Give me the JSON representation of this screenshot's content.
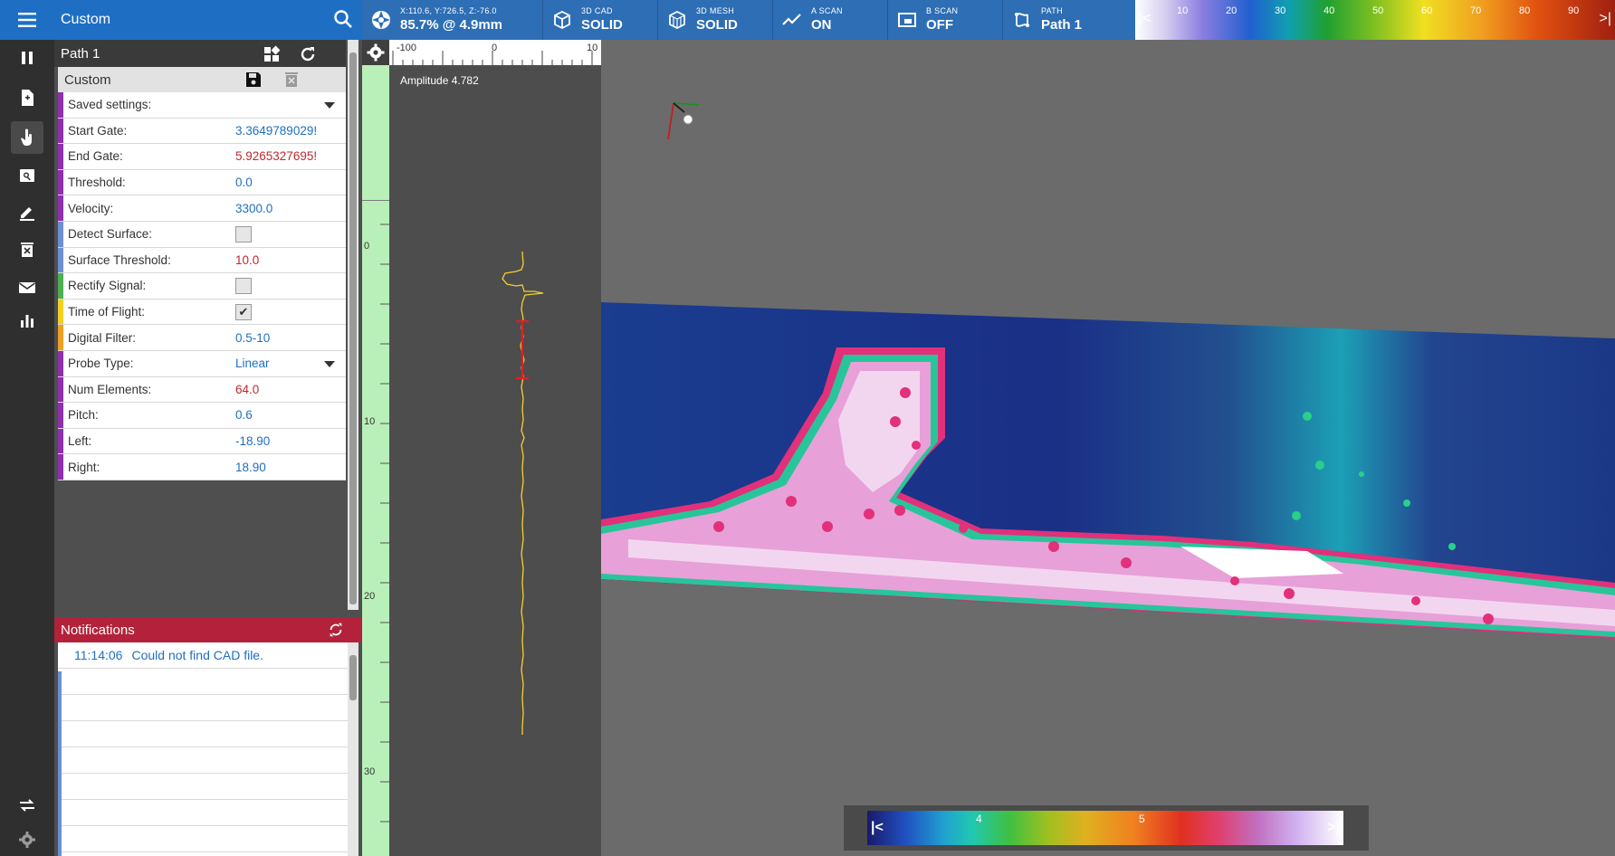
{
  "header": {
    "title": "Custom"
  },
  "path": {
    "name": "Path 1"
  },
  "preset": {
    "name": "Custom"
  },
  "settings": [
    {
      "label": "Saved settings:",
      "type": "dropdown",
      "value": "",
      "color": "#8e2fae"
    },
    {
      "label": "Start Gate:",
      "type": "text",
      "value": "3.3649789029!",
      "tone": "blue",
      "color": "#8e2fae"
    },
    {
      "label": "End Gate:",
      "type": "text",
      "value": "5.9265327695!",
      "tone": "red",
      "color": "#8e2fae"
    },
    {
      "label": "Threshold:",
      "type": "text",
      "value": "0.0",
      "tone": "blue",
      "color": "#8e2fae"
    },
    {
      "label": "Velocity:",
      "type": "text",
      "value": "3300.0",
      "tone": "blue",
      "color": "#8e2fae"
    },
    {
      "label": "Detect Surface:",
      "type": "checkbox",
      "checked": false,
      "color": "#6b8fd4"
    },
    {
      "label": "Surface Threshold:",
      "type": "text",
      "value": "10.0",
      "tone": "red",
      "color": "#6b8fd4"
    },
    {
      "label": "Rectify Signal:",
      "type": "checkbox",
      "checked": false,
      "color": "#4caf50"
    },
    {
      "label": "Time of Flight:",
      "type": "checkbox",
      "checked": true,
      "color": "#f0d020"
    },
    {
      "label": "Digital Filter:",
      "type": "text",
      "value": "0.5-10",
      "tone": "blue",
      "color": "#f0a020"
    },
    {
      "label": "Probe Type:",
      "type": "dropdown",
      "value": "Linear",
      "tone": "blue",
      "color": "#8e2fae"
    },
    {
      "label": "Num Elements:",
      "type": "text",
      "value": "64.0",
      "tone": "red",
      "color": "#8e2fae"
    },
    {
      "label": "Pitch:",
      "type": "text",
      "value": "0.6",
      "tone": "blue",
      "color": "#8e2fae"
    },
    {
      "label": "Left:",
      "type": "text",
      "value": "-18.90",
      "tone": "blue",
      "color": "#8e2fae"
    },
    {
      "label": "Right:",
      "type": "text",
      "value": "18.90",
      "tone": "blue",
      "color": "#8e2fae"
    }
  ],
  "notifications": {
    "title": "Notifications",
    "items": [
      {
        "time": "11:14:06",
        "message": "Could not find CAD file."
      }
    ]
  },
  "toolbar": {
    "position": {
      "coords": "X:110.6, Y:726.5, Z:-76.0",
      "value": "85.7% @ 4.9mm"
    },
    "cad": {
      "label": "3D CAD",
      "value": "SOLID"
    },
    "mesh": {
      "label": "3D MESH",
      "value": "SOLID"
    },
    "ascan": {
      "label": "A SCAN",
      "value": "ON"
    },
    "bscan": {
      "label": "B SCAN",
      "value": "OFF"
    },
    "path": {
      "label": "PATH",
      "value": "Path 1"
    }
  },
  "top_scale": {
    "ticks": [
      "10",
      "20",
      "30",
      "40",
      "50",
      "60",
      "70",
      "80",
      "90"
    ]
  },
  "ascan_view": {
    "amplitude_label": "Amplitude",
    "amplitude_value": "4.782",
    "x_ticks": [
      "-100",
      "0",
      "10"
    ],
    "y_ticks": [
      "0",
      "10",
      "20",
      "30"
    ]
  },
  "bottom_scale": {
    "ticks": [
      "4",
      "5"
    ]
  },
  "colors": {
    "accent": "#1e6fc4",
    "notification": "#b3223a",
    "trace": "#f0d030",
    "gate": "#e02020"
  }
}
